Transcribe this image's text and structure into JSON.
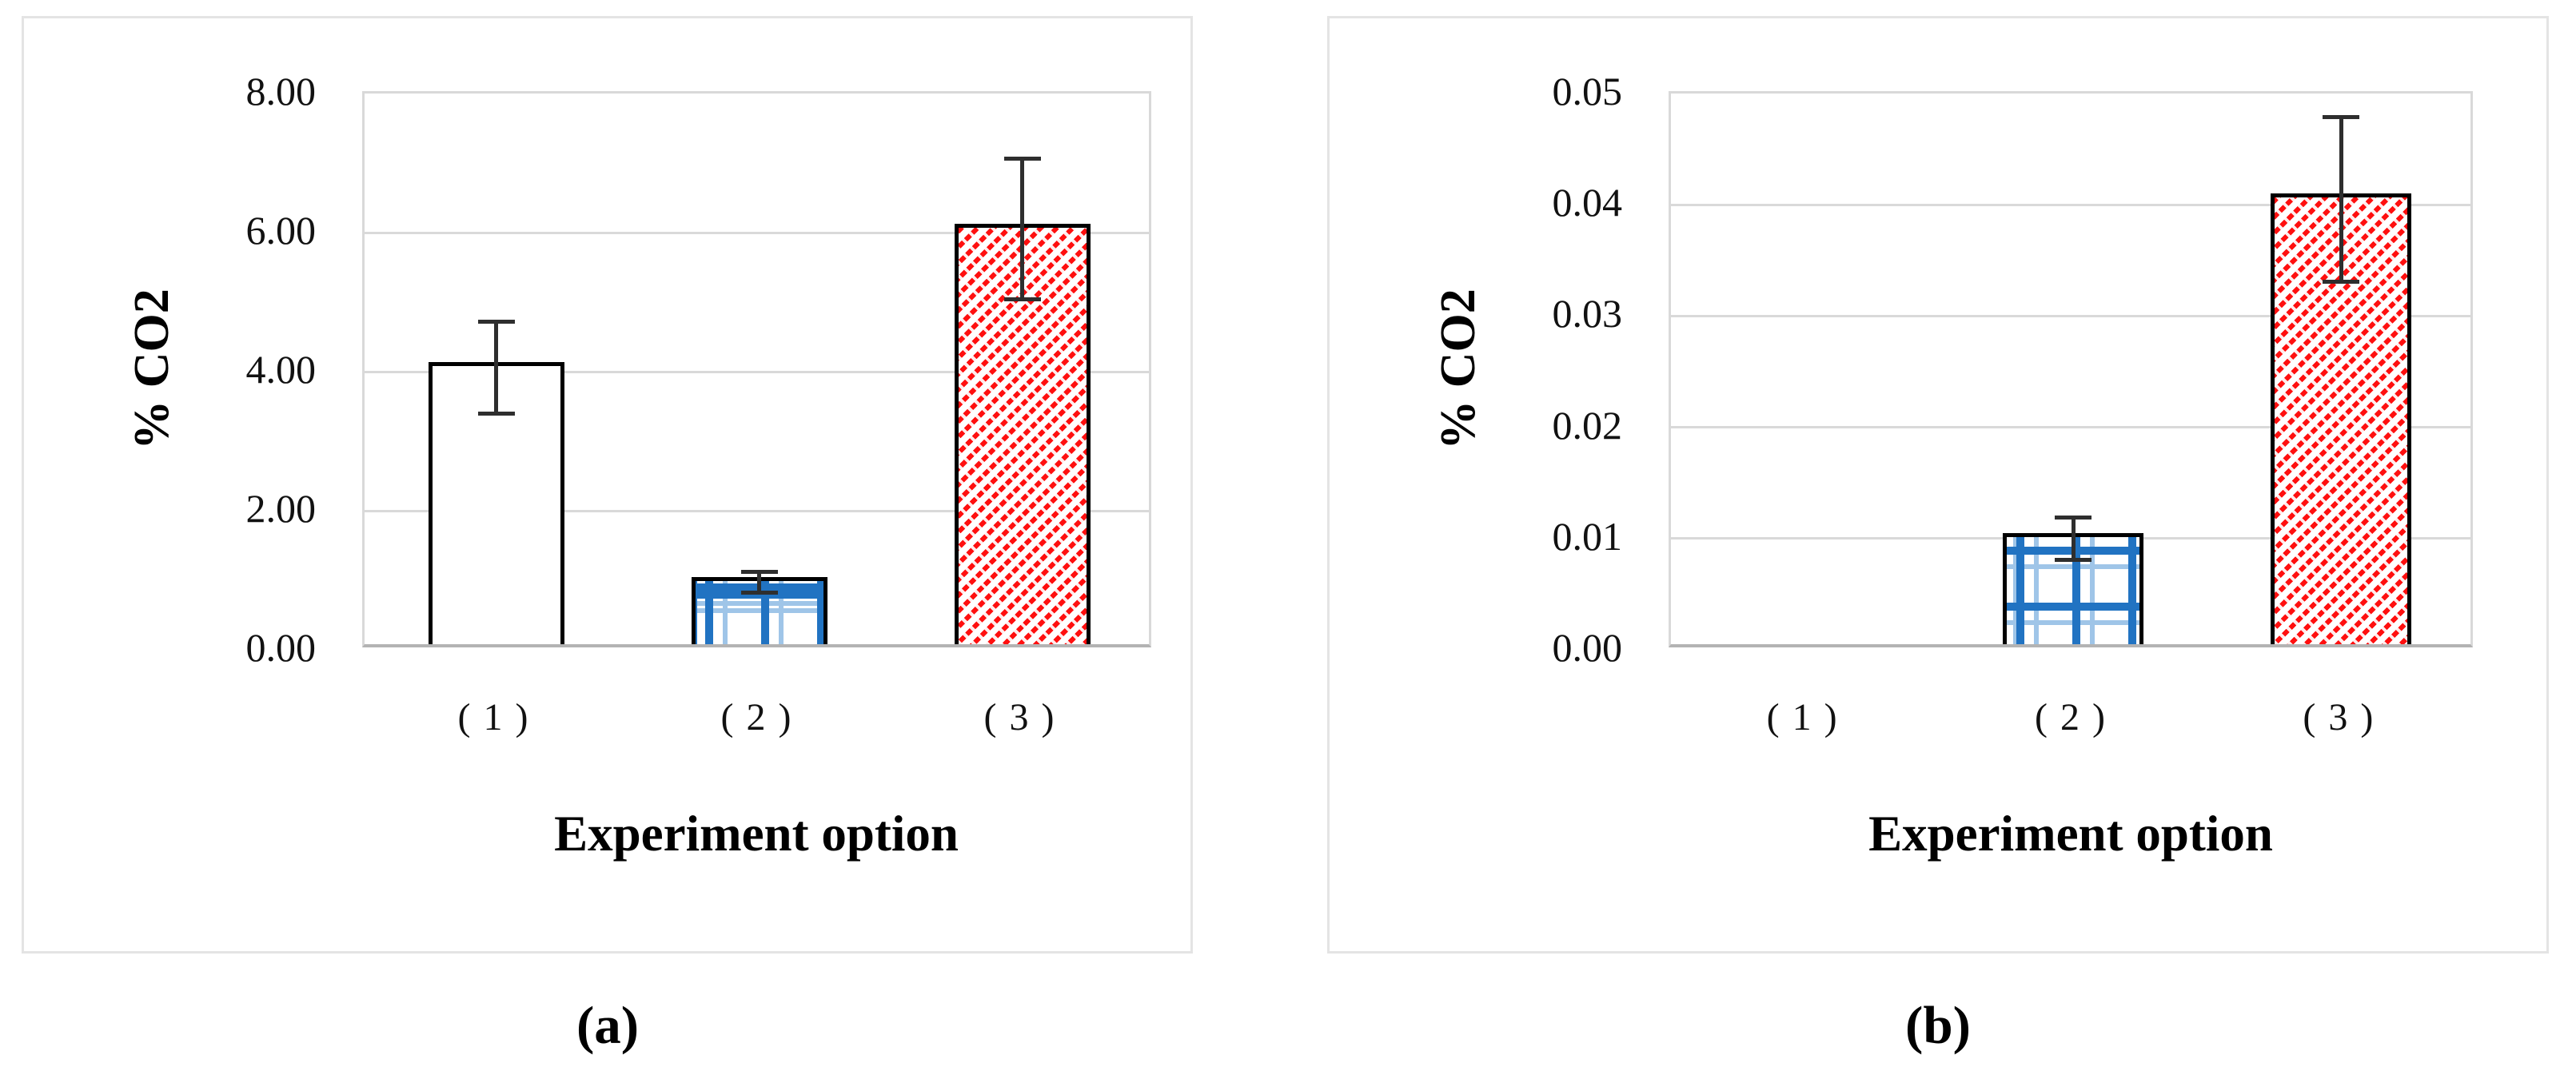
{
  "figure": {
    "captions": {
      "a": "(a)",
      "b": "(b)"
    },
    "colors": {
      "bar_outline": "#000000",
      "blue_pattern": "#2173c2",
      "blue_pattern_light": "#9fc5e8",
      "red_pattern": "#ff0f0f",
      "gridline": "#d9d9d9",
      "axis_line": "#b3b3b3",
      "error_bar": "#2e2e2e",
      "panel_border": "#e4e4e4"
    }
  },
  "chart_data": [
    {
      "id": "a",
      "type": "bar",
      "title": "",
      "ylabel": "% CO2",
      "xlabel": "Experiment option",
      "ylim": [
        0,
        8
      ],
      "ytick_step": 2,
      "ytick_labels": [
        "0.00",
        "2.00",
        "4.00",
        "6.00",
        "8.00"
      ],
      "categories": [
        "( 1 )",
        "( 2 )",
        "( 3 )"
      ],
      "grid": "horizontal-major",
      "legend": "none",
      "series": [
        {
          "name": "% CO2",
          "values": [
            4.06,
            0.97,
            6.05
          ],
          "errors": [
            0.66,
            0.15,
            1.01
          ],
          "bar_styles": [
            "plain-white",
            "blue-grid",
            "red-hatch"
          ]
        }
      ]
    },
    {
      "id": "b",
      "type": "bar",
      "title": "",
      "ylabel": "% CO2",
      "xlabel": "Experiment option",
      "ylim": [
        0,
        0.05
      ],
      "ytick_step": 0.01,
      "ytick_labels": [
        "0.00",
        "0.01",
        "0.02",
        "0.03",
        "0.04",
        "0.05"
      ],
      "categories": [
        "( 1 )",
        "( 2 )",
        "( 3 )"
      ],
      "grid": "horizontal-major",
      "legend": "none",
      "series": [
        {
          "name": "% CO2",
          "values": [
            0,
            0.01,
            0.0405
          ],
          "errors": [
            0,
            0.0019,
            0.0074
          ],
          "bar_styles": [
            "plain-white",
            "blue-grid",
            "red-hatch"
          ]
        }
      ]
    }
  ]
}
